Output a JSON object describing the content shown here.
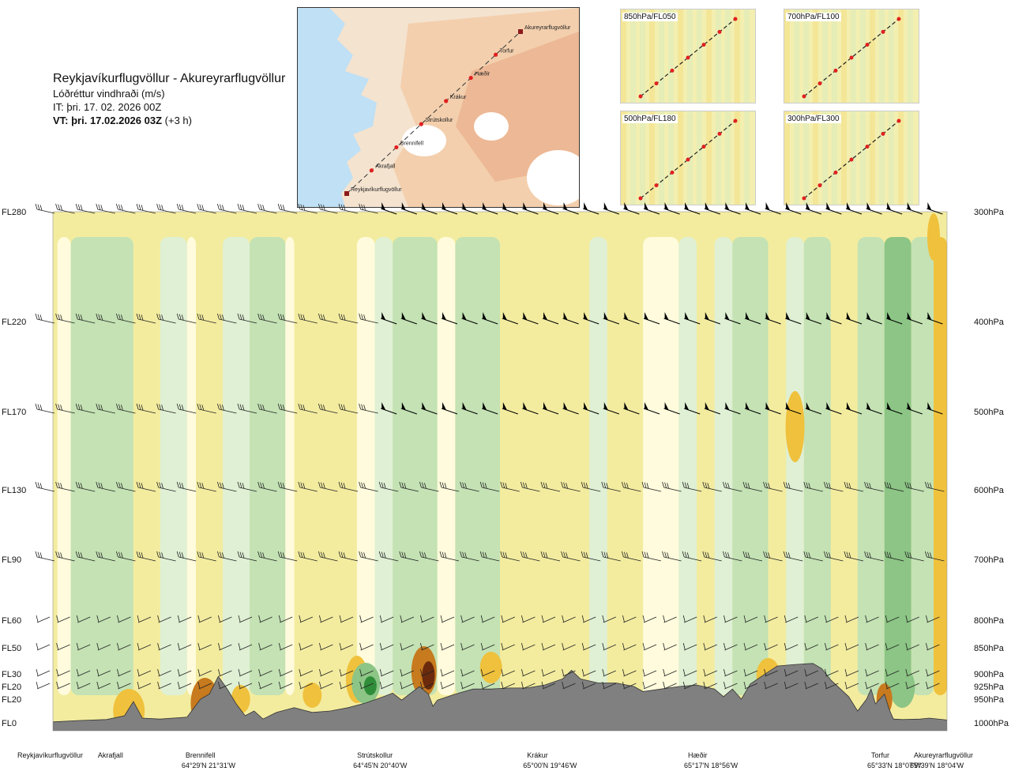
{
  "title": {
    "route": "Reykjavíkurflugvöllur - Akureyrarflugvöllur",
    "parameter": "Lóðréttur vindhraði (m/s)",
    "it": "IT: þri. 17. 02. 2026 00Z",
    "vt_bold": "VT: þri. 17.02.2026 03Z",
    "vt_offset": " (+3 h)"
  },
  "route_map": {
    "points": [
      {
        "name": "Akureyrarflugvöllur",
        "type": "airport"
      },
      {
        "name": "Torfur",
        "type": "waypoint"
      },
      {
        "name": "Hæðir",
        "type": "waypoint"
      },
      {
        "name": "Krákur",
        "type": "waypoint"
      },
      {
        "name": "Strútskollur",
        "type": "waypoint"
      },
      {
        "name": "Brennifell",
        "type": "waypoint"
      },
      {
        "name": "Akrafjall",
        "type": "waypoint"
      },
      {
        "name": "Reykjavíkurflugvöllur",
        "type": "airport"
      }
    ]
  },
  "mini_maps": [
    "850hPa/FL050",
    "700hPa/FL100",
    "500hPa/FL180",
    "300hPa/FL300"
  ],
  "chart_data": {
    "type": "heatmap",
    "title": "Lóðréttur vindhraði (m/s)",
    "xlabel": "",
    "ylabel": "",
    "x_waypoints": [
      {
        "name": "Reykjavíkurflugvöllur",
        "coord": "",
        "pos": 0.0
      },
      {
        "name": "Akrafjall",
        "coord": "",
        "pos": 0.09
      },
      {
        "name": "Brennifell",
        "coord": "64°29'N 21°31'W",
        "pos": 0.188
      },
      {
        "name": "Strútskollur",
        "coord": "64°45'N 20°40'W",
        "pos": 0.38
      },
      {
        "name": "Krákur",
        "coord": "65°00'N 19°46'W",
        "pos": 0.57
      },
      {
        "name": "Hæðir",
        "coord": "65°17'N 18°56'W",
        "pos": 0.75
      },
      {
        "name": "Torfur",
        "coord": "65°33'N 18°07'W",
        "pos": 0.955
      },
      {
        "name": "Akureyrarflugvöllur",
        "coord": "65°39'N 18°04'W",
        "pos": 1.0
      }
    ],
    "flight_levels": [
      {
        "label": "FL280",
        "pressure": "300hPa",
        "p": 300
      },
      {
        "label": "FL220",
        "pressure": "400hPa",
        "p": 400
      },
      {
        "label": "FL170",
        "pressure": "500hPa",
        "p": 500
      },
      {
        "label": "FL130",
        "pressure": "600hPa",
        "p": 600
      },
      {
        "label": "FL90",
        "pressure": "700hPa",
        "p": 700
      },
      {
        "label": "FL60",
        "pressure": "800hPa",
        "p": 800
      },
      {
        "label": "FL50",
        "pressure": "850hPa",
        "p": 850
      },
      {
        "label": "FL30",
        "pressure": "900hPa",
        "p": 900
      },
      {
        "label": "FL20",
        "pressure": "925hPa",
        "p": 925
      },
      {
        "label": "FL20",
        "pressure": "950hPa",
        "p": 950
      },
      {
        "label": "FL0",
        "pressure": "1000hPa",
        "p": 1000
      }
    ],
    "colors": {
      "up_strong": "#6b2a0c",
      "up_med": "#c77a1e",
      "up_light": "#f0c13c",
      "up_faint": "#f3ec9f",
      "neutral": "#fffbdc",
      "down_faint": "#dff0d4",
      "down_light": "#c4e2b4",
      "down_med": "#8cc585",
      "down_strong": "#2f8d3a",
      "terrain": "#808080",
      "wind_barb": "#000000"
    },
    "terrain_profile": [
      [
        0.0,
        998
      ],
      [
        0.03,
        995
      ],
      [
        0.06,
        993
      ],
      [
        0.08,
        985
      ],
      [
        0.09,
        955
      ],
      [
        0.1,
        990
      ],
      [
        0.12,
        992
      ],
      [
        0.15,
        988
      ],
      [
        0.165,
        950
      ],
      [
        0.175,
        940
      ],
      [
        0.185,
        905
      ],
      [
        0.195,
        930
      ],
      [
        0.205,
        960
      ],
      [
        0.215,
        985
      ],
      [
        0.225,
        975
      ],
      [
        0.235,
        992
      ],
      [
        0.25,
        978
      ],
      [
        0.27,
        968
      ],
      [
        0.29,
        978
      ],
      [
        0.31,
        975
      ],
      [
        0.33,
        968
      ],
      [
        0.35,
        958
      ],
      [
        0.37,
        945
      ],
      [
        0.38,
        938
      ],
      [
        0.39,
        952
      ],
      [
        0.41,
        925
      ],
      [
        0.42,
        940
      ],
      [
        0.425,
        965
      ],
      [
        0.43,
        952
      ],
      [
        0.45,
        940
      ],
      [
        0.47,
        930
      ],
      [
        0.49,
        930
      ],
      [
        0.51,
        928
      ],
      [
        0.53,
        928
      ],
      [
        0.55,
        922
      ],
      [
        0.57,
        910
      ],
      [
        0.58,
        893
      ],
      [
        0.59,
        910
      ],
      [
        0.61,
        918
      ],
      [
        0.63,
        918
      ],
      [
        0.65,
        925
      ],
      [
        0.66,
        935
      ],
      [
        0.68,
        930
      ],
      [
        0.7,
        925
      ],
      [
        0.72,
        922
      ],
      [
        0.74,
        930
      ],
      [
        0.75,
        945
      ],
      [
        0.76,
        930
      ],
      [
        0.77,
        950
      ],
      [
        0.78,
        920
      ],
      [
        0.795,
        902
      ],
      [
        0.81,
        885
      ],
      [
        0.83,
        882
      ],
      [
        0.85,
        880
      ],
      [
        0.86,
        890
      ],
      [
        0.87,
        912
      ],
      [
        0.89,
        945
      ],
      [
        0.9,
        975
      ],
      [
        0.91,
        950
      ],
      [
        0.915,
        930
      ],
      [
        0.92,
        960
      ],
      [
        0.93,
        940
      ],
      [
        0.935,
        970
      ],
      [
        0.94,
        992
      ],
      [
        0.95,
        993
      ],
      [
        0.97,
        992
      ],
      [
        0.98,
        990
      ],
      [
        1.0,
        994
      ]
    ]
  }
}
